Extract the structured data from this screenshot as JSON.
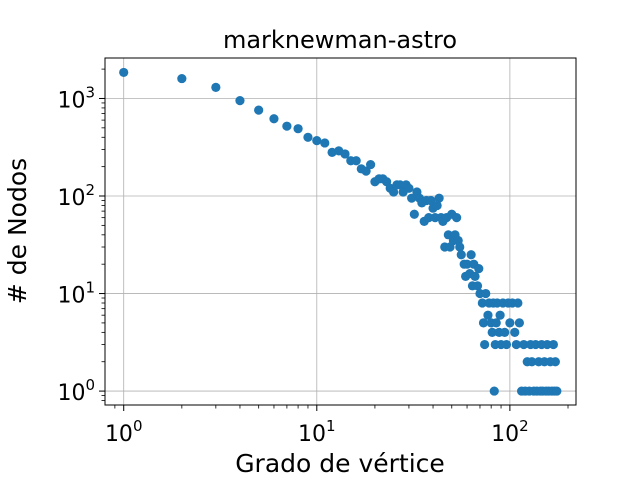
{
  "chart_data": {
    "type": "scatter",
    "title": "marknewman-astro",
    "xlabel": "Grado de vértice",
    "ylabel": "# de Nodos",
    "xscale": "log",
    "yscale": "log",
    "xlim": [
      0.8,
      220
    ],
    "ylim": [
      0.72,
      2600
    ],
    "grid": true,
    "marker_color": "#1f77b4",
    "x_ticks": [
      {
        "base": "10",
        "exp": "0",
        "value": 1
      },
      {
        "base": "10",
        "exp": "1",
        "value": 10
      },
      {
        "base": "10",
        "exp": "2",
        "value": 100
      }
    ],
    "y_ticks": [
      {
        "base": "10",
        "exp": "0",
        "value": 1
      },
      {
        "base": "10",
        "exp": "1",
        "value": 10
      },
      {
        "base": "10",
        "exp": "2",
        "value": 100
      },
      {
        "base": "10",
        "exp": "3",
        "value": 1000
      }
    ],
    "points": [
      [
        1,
        1850
      ],
      [
        2,
        1600
      ],
      [
        3,
        1300
      ],
      [
        4,
        950
      ],
      [
        5,
        760
      ],
      [
        6,
        620
      ],
      [
        7,
        520
      ],
      [
        8,
        490
      ],
      [
        9,
        400
      ],
      [
        10,
        370
      ],
      [
        11,
        350
      ],
      [
        12,
        280
      ],
      [
        13,
        290
      ],
      [
        14,
        270
      ],
      [
        15,
        230
      ],
      [
        16,
        230
      ],
      [
        17,
        190
      ],
      [
        18,
        180
      ],
      [
        19,
        210
      ],
      [
        20,
        140
      ],
      [
        21,
        150
      ],
      [
        22,
        150
      ],
      [
        23,
        140
      ],
      [
        24,
        120
      ],
      [
        25,
        110
      ],
      [
        26,
        130
      ],
      [
        27,
        130
      ],
      [
        28,
        110
      ],
      [
        29,
        130
      ],
      [
        30,
        120
      ],
      [
        31,
        95
      ],
      [
        32,
        65
      ],
      [
        33,
        110
      ],
      [
        34,
        95
      ],
      [
        35,
        85
      ],
      [
        36,
        55
      ],
      [
        37,
        90
      ],
      [
        38,
        60
      ],
      [
        39,
        90
      ],
      [
        40,
        75
      ],
      [
        41,
        60
      ],
      [
        42,
        80
      ],
      [
        43,
        95
      ],
      [
        44,
        60
      ],
      [
        45,
        55
      ],
      [
        46,
        30
      ],
      [
        47,
        60
      ],
      [
        48,
        40
      ],
      [
        49,
        30
      ],
      [
        50,
        65
      ],
      [
        51,
        35
      ],
      [
        52,
        40
      ],
      [
        53,
        60
      ],
      [
        54,
        35
      ],
      [
        55,
        30
      ],
      [
        56,
        25
      ],
      [
        58,
        20
      ],
      [
        59,
        15
      ],
      [
        60,
        20
      ],
      [
        62,
        16
      ],
      [
        63,
        25
      ],
      [
        64,
        12
      ],
      [
        65,
        20
      ],
      [
        66,
        15
      ],
      [
        68,
        12
      ],
      [
        69,
        18
      ],
      [
        70,
        10
      ],
      [
        72,
        8
      ],
      [
        73,
        5
      ],
      [
        74,
        3
      ],
      [
        75,
        10
      ],
      [
        77,
        6
      ],
      [
        78,
        8
      ],
      [
        80,
        5
      ],
      [
        81,
        4
      ],
      [
        82,
        8
      ],
      [
        83,
        1
      ],
      [
        84,
        3
      ],
      [
        85,
        5
      ],
      [
        86,
        8
      ],
      [
        88,
        4
      ],
      [
        89,
        6
      ],
      [
        90,
        3
      ],
      [
        92,
        8
      ],
      [
        94,
        4
      ],
      [
        96,
        3
      ],
      [
        98,
        8
      ],
      [
        100,
        5
      ],
      [
        103,
        8
      ],
      [
        106,
        4
      ],
      [
        108,
        3
      ],
      [
        110,
        8
      ],
      [
        112,
        5
      ],
      [
        115,
        1
      ],
      [
        118,
        3
      ],
      [
        120,
        1
      ],
      [
        123,
        2
      ],
      [
        126,
        1
      ],
      [
        128,
        3
      ],
      [
        130,
        2
      ],
      [
        133,
        1
      ],
      [
        136,
        3
      ],
      [
        138,
        1
      ],
      [
        141,
        2
      ],
      [
        144,
        1
      ],
      [
        146,
        3
      ],
      [
        148,
        1
      ],
      [
        151,
        2
      ],
      [
        154,
        1
      ],
      [
        156,
        3
      ],
      [
        159,
        1
      ],
      [
        162,
        2
      ],
      [
        165,
        1
      ],
      [
        168,
        3
      ],
      [
        170,
        1
      ],
      [
        172,
        2
      ],
      [
        175,
        1
      ]
    ]
  }
}
